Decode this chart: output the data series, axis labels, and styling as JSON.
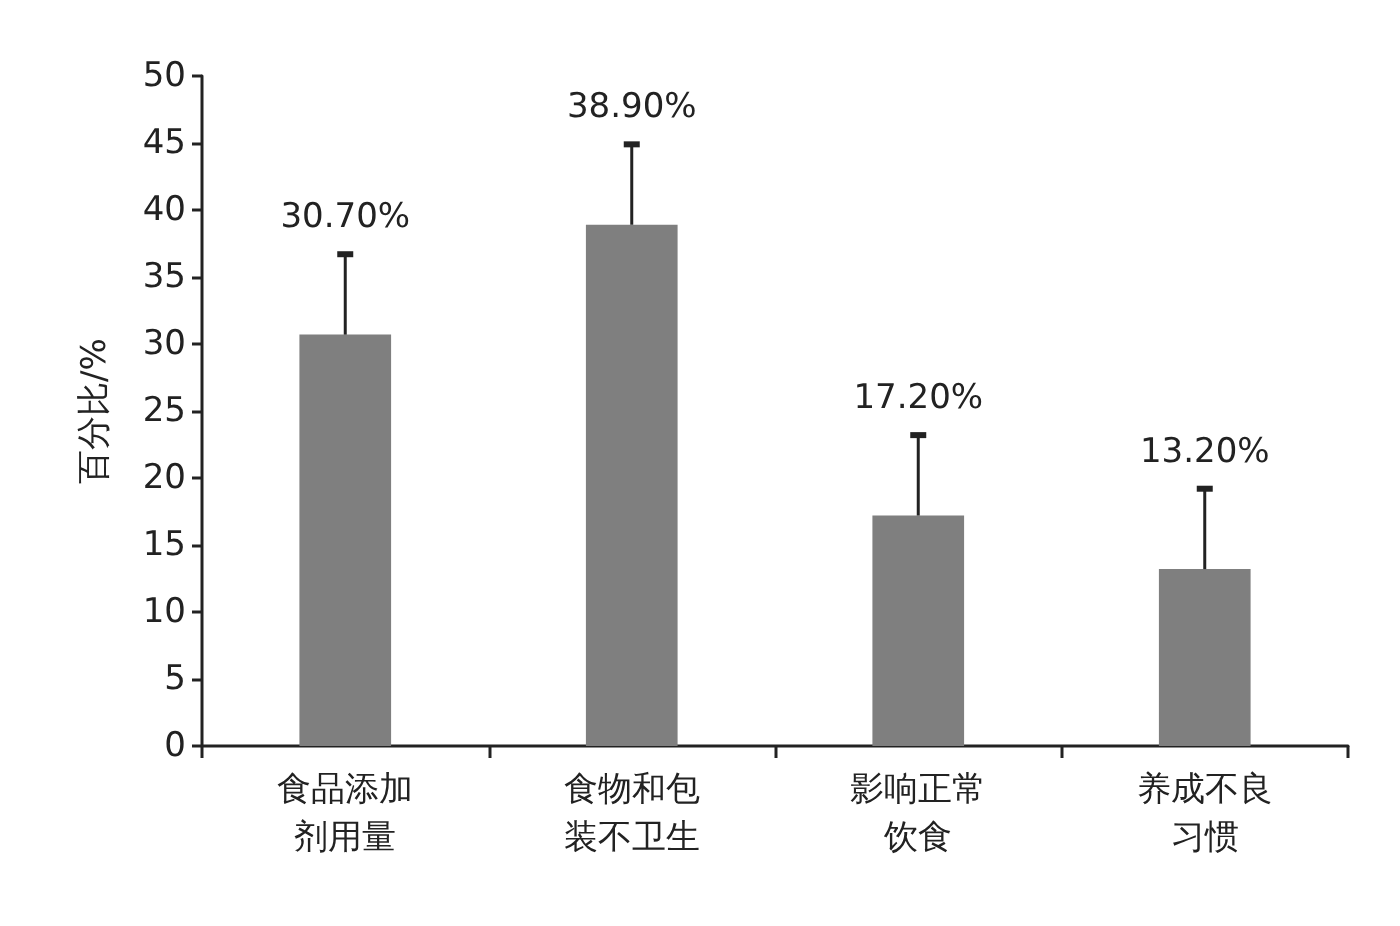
{
  "chart_data": {
    "type": "bar",
    "ylabel": "百分比/%",
    "categories": [
      "食品添加剂用量",
      "食物和包装不卫生",
      "影响正常饮食",
      "养成不良习惯"
    ],
    "values": [
      30.7,
      38.9,
      17.2,
      13.2
    ],
    "errors": [
      [
        30.7,
        36.7
      ],
      [
        38.9,
        44.9
      ],
      [
        17.2,
        23.2
      ],
      [
        13.2,
        19.2
      ]
    ],
    "value_labels": [
      "30.70%",
      "38.90%",
      "17.20%",
      "13.20%"
    ],
    "color": "#7f7f7f",
    "ylim": [
      0,
      50
    ],
    "yticks": [
      0,
      5,
      10,
      15,
      20,
      25,
      30,
      35,
      40,
      45,
      50
    ],
    "grid": false
  }
}
